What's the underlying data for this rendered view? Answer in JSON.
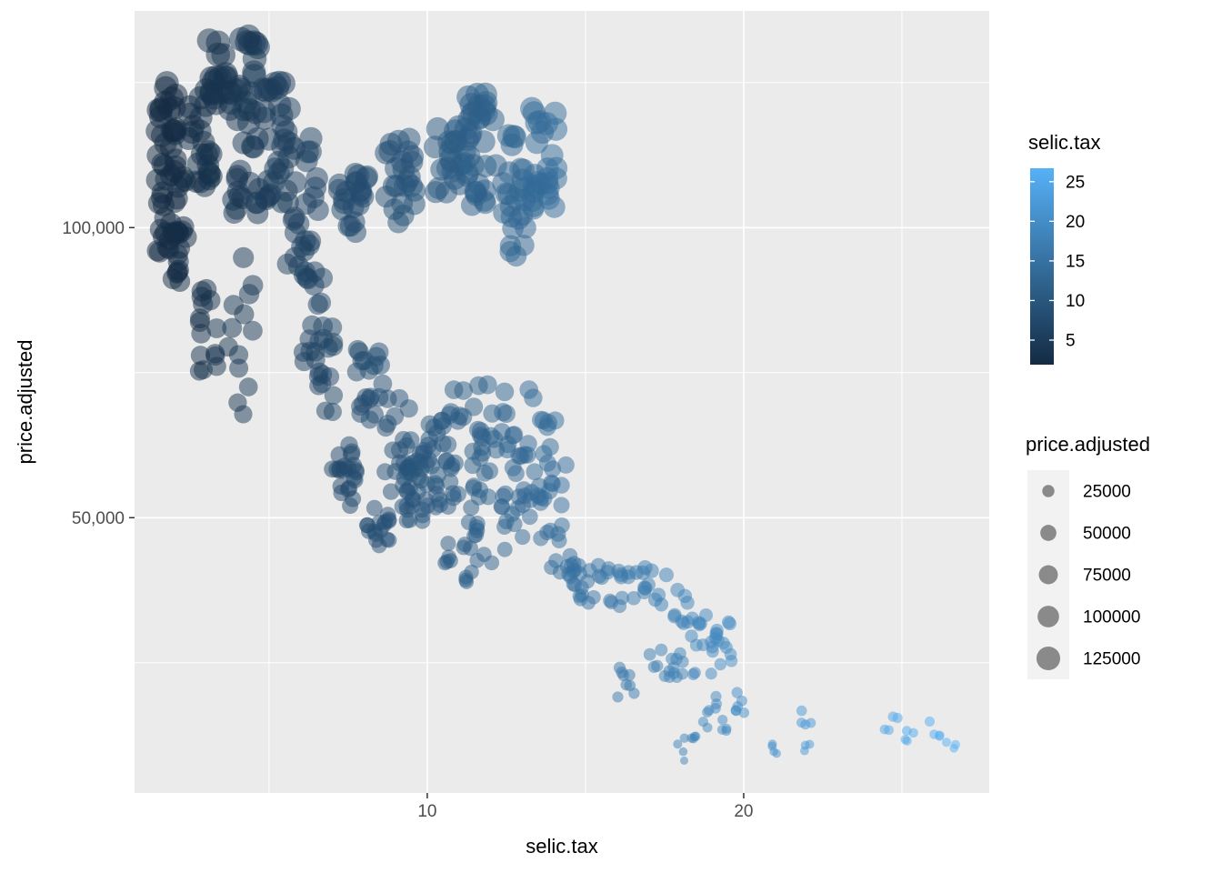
{
  "chart_data": {
    "type": "scatter",
    "title": "",
    "xlabel": "selic.tax",
    "ylabel": "price.adjusted",
    "xlim": [
      0.75,
      27.76
    ],
    "ylim": [
      2550,
      137350
    ],
    "grid": true,
    "panel_bg": "#EBEBEB",
    "grid_color": "#FFFFFF",
    "x_ticks": [
      {
        "v": 10,
        "label": "10"
      },
      {
        "v": 20,
        "label": "20"
      }
    ],
    "x_minor": [
      5,
      15,
      25
    ],
    "y_ticks": [
      {
        "v": 50000,
        "label": "50,000"
      },
      {
        "v": 100000,
        "label": "100,000"
      }
    ],
    "y_minor": [
      25000,
      75000,
      125000
    ],
    "point_alpha": 0.5,
    "color_scale": {
      "title": "selic.tax",
      "low": "#132B43",
      "high": "#56B1F7",
      "domain": [
        1.9,
        26.7
      ],
      "ticks": [
        {
          "v": 25,
          "label": "25"
        },
        {
          "v": 20,
          "label": "20"
        },
        {
          "v": 15,
          "label": "15"
        },
        {
          "v": 10,
          "label": "10"
        },
        {
          "v": 5,
          "label": "5"
        }
      ],
      "legend_position": "right"
    },
    "size_scale": {
      "title": "price.adjusted",
      "domain": [
        8000,
        135000
      ],
      "radius_px": [
        4.5,
        13.5
      ],
      "entries": [
        {
          "v": 25000,
          "label": "25000"
        },
        {
          "v": 50000,
          "label": "50000"
        },
        {
          "v": 75000,
          "label": "75000"
        },
        {
          "v": 100000,
          "label": "100000"
        },
        {
          "v": 125000,
          "label": "125000"
        }
      ],
      "legend_position": "right"
    },
    "bands_format": "[selic_tax_center, selic_tax_halfwidth, price_min, price_max, n_points] — vertical clusters of points; point color = selic.tax (x), point size = price.adjusted (y)",
    "bands": [
      [
        1.8,
        0.35,
        95000,
        126000,
        45
      ],
      [
        2.15,
        0.3,
        90000,
        110000,
        20
      ],
      [
        2.8,
        0.4,
        106000,
        124500,
        25
      ],
      [
        3.05,
        0.35,
        75000,
        92000,
        15
      ],
      [
        3.9,
        0.8,
        117500,
        133400,
        40
      ],
      [
        4.2,
        0.5,
        101500,
        117000,
        18
      ],
      [
        4.1,
        0.4,
        62000,
        100000,
        13
      ],
      [
        5.25,
        0.45,
        103500,
        125000,
        30
      ],
      [
        6.0,
        0.55,
        91000,
        116000,
        30
      ],
      [
        6.6,
        0.55,
        68000,
        92000,
        28
      ],
      [
        7.7,
        0.5,
        98500,
        110000,
        22
      ],
      [
        9.15,
        0.45,
        100000,
        115500,
        24
      ],
      [
        10.8,
        0.6,
        105000,
        117500,
        26
      ],
      [
        11.7,
        0.55,
        103000,
        123000,
        30
      ],
      [
        12.8,
        0.4,
        93500,
        116000,
        26
      ],
      [
        13.7,
        0.4,
        103000,
        122500,
        28
      ],
      [
        7.4,
        0.4,
        52000,
        64500,
        22
      ],
      [
        8.15,
        0.45,
        64500,
        79000,
        20
      ],
      [
        8.4,
        0.4,
        44000,
        52500,
        16
      ],
      [
        9.15,
        0.55,
        48000,
        70800,
        28
      ],
      [
        9.75,
        0.55,
        48000,
        61300,
        24
      ],
      [
        10.35,
        0.55,
        51300,
        72300,
        26
      ],
      [
        11.0,
        0.7,
        38700,
        75400,
        34
      ],
      [
        12.0,
        0.6,
        41800,
        73800,
        30
      ],
      [
        12.8,
        0.6,
        45000,
        72300,
        28
      ],
      [
        13.8,
        0.7,
        41800,
        67600,
        28
      ],
      [
        14.35,
        0.55,
        36200,
        45600,
        14
      ],
      [
        15.15,
        0.55,
        35000,
        42500,
        12
      ],
      [
        16.05,
        0.55,
        34300,
        41800,
        12
      ],
      [
        17.1,
        0.5,
        35000,
        41800,
        12
      ],
      [
        18.05,
        0.25,
        31200,
        37800,
        8
      ],
      [
        18.75,
        0.45,
        27700,
        34000,
        10
      ],
      [
        19.4,
        0.5,
        23000,
        33100,
        14
      ],
      [
        16.3,
        0.3,
        19000,
        25200,
        8
      ],
      [
        17.4,
        0.4,
        22100,
        27700,
        9
      ],
      [
        18.1,
        0.4,
        22100,
        26800,
        8
      ],
      [
        19.0,
        0.2,
        16200,
        19900,
        5
      ],
      [
        19.85,
        0.25,
        15200,
        19900,
        6
      ],
      [
        18.05,
        0.15,
        8000,
        12100,
        4
      ],
      [
        18.6,
        0.3,
        11100,
        15200,
        6
      ],
      [
        19.35,
        0.15,
        12400,
        15800,
        4
      ],
      [
        20.95,
        0.15,
        7700,
        11100,
        4
      ],
      [
        22.0,
        0.2,
        14000,
        17400,
        4
      ],
      [
        22.0,
        0.1,
        9300,
        12100,
        3
      ],
      [
        24.65,
        0.25,
        13000,
        15800,
        4
      ],
      [
        25.4,
        0.3,
        10800,
        13300,
        4
      ],
      [
        26.0,
        0.2,
        12100,
        15200,
        4
      ],
      [
        26.55,
        0.15,
        9300,
        12700,
        3
      ]
    ]
  }
}
